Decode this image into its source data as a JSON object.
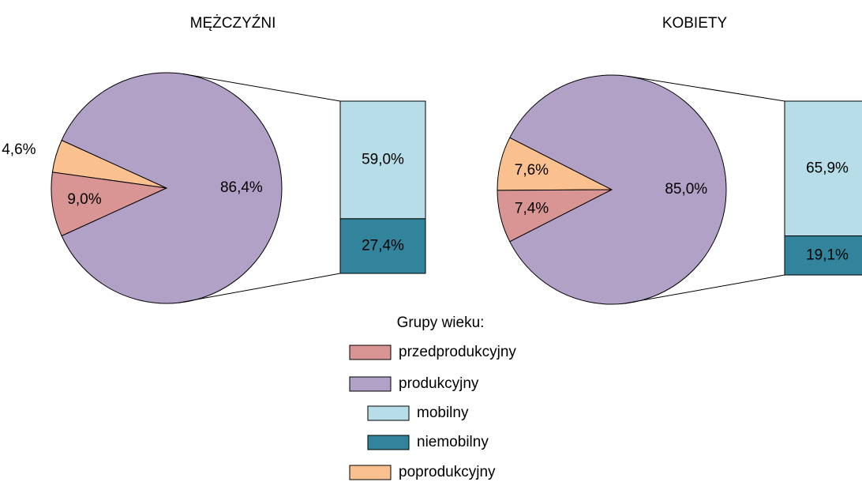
{
  "legend_title": "Grupy wieku:",
  "chart_data": [
    {
      "type": "pie",
      "title": "MĘŻCZYŹNI",
      "categories": [
        "przedprodukcyjny",
        "produkcyjny",
        "poprodukcyjny"
      ],
      "values": [
        9.0,
        86.4,
        4.6
      ],
      "value_labels": [
        "9,0%",
        "86,4%",
        "4,6%"
      ],
      "colors": [
        "#d99594",
        "#b2a1c7",
        "#fac090"
      ],
      "breakdown": {
        "categories": [
          "mobilny",
          "niemobilny"
        ],
        "values": [
          59.0,
          27.4
        ],
        "value_labels": [
          "59,0%",
          "27,4%"
        ],
        "colors": [
          "#b7dde8",
          "#31849b"
        ]
      }
    },
    {
      "type": "pie",
      "title": "KOBIETY",
      "categories": [
        "przedprodukcyjny",
        "produkcyjny",
        "poprodukcyjny"
      ],
      "values": [
        7.4,
        85.0,
        7.6
      ],
      "value_labels": [
        "7,4%",
        "85,0%",
        "7,6%"
      ],
      "colors": [
        "#d99594",
        "#b2a1c7",
        "#fac090"
      ],
      "breakdown": {
        "categories": [
          "mobilny",
          "niemobilny"
        ],
        "values": [
          65.9,
          19.1
        ],
        "value_labels": [
          "65,9%",
          "19,1%"
        ],
        "colors": [
          "#b7dde8",
          "#31849b"
        ]
      }
    }
  ]
}
